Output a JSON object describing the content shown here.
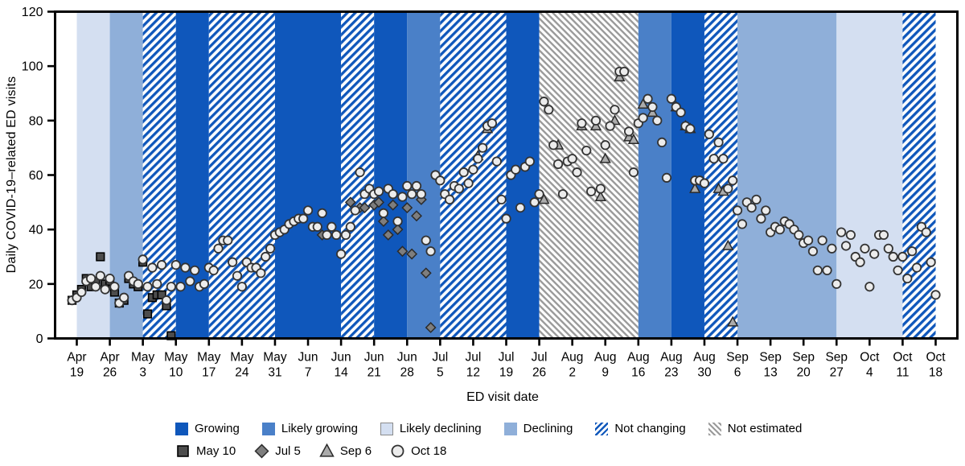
{
  "chart_data": {
    "type": "scatter",
    "xlabel": "ED visit date",
    "ylabel": "Daily COVID-19–related ED visits",
    "ylim": [
      0,
      120
    ],
    "yticks": [
      0,
      20,
      40,
      60,
      80,
      100,
      120
    ],
    "day_zero_label": "Apr 19",
    "x_domain_days": [
      -4.6,
      186.6
    ],
    "x_tick_days": [
      0,
      7,
      14,
      21,
      28,
      35,
      42,
      49,
      56,
      63,
      70,
      77,
      84,
      91,
      98,
      105,
      112,
      119,
      126,
      133,
      140,
      147,
      154,
      161,
      168,
      175,
      182
    ],
    "x_tick_labels": [
      {
        "month": "Apr",
        "day": "19"
      },
      {
        "month": "Apr",
        "day": "26"
      },
      {
        "month": "May",
        "day": "3"
      },
      {
        "month": "May",
        "day": "10"
      },
      {
        "month": "May",
        "day": "17"
      },
      {
        "month": "May",
        "day": "24"
      },
      {
        "month": "May",
        "day": "31"
      },
      {
        "month": "Jun",
        "day": "7"
      },
      {
        "month": "Jun",
        "day": "14"
      },
      {
        "month": "Jun",
        "day": "21"
      },
      {
        "month": "Jun",
        "day": "28"
      },
      {
        "month": "Jul",
        "day": "5"
      },
      {
        "month": "Jul",
        "day": "12"
      },
      {
        "month": "Jul",
        "day": "19"
      },
      {
        "month": "Jul",
        "day": "26"
      },
      {
        "month": "Aug",
        "day": "2"
      },
      {
        "month": "Aug",
        "day": "9"
      },
      {
        "month": "Aug",
        "day": "16"
      },
      {
        "month": "Aug",
        "day": "23"
      },
      {
        "month": "Aug",
        "day": "30"
      },
      {
        "month": "Sep",
        "day": "6"
      },
      {
        "month": "Sep",
        "day": "13"
      },
      {
        "month": "Sep",
        "day": "20"
      },
      {
        "month": "Sep",
        "day": "27"
      },
      {
        "month": "Oct",
        "day": "4"
      },
      {
        "month": "Oct",
        "day": "11"
      },
      {
        "month": "Oct",
        "day": "18"
      }
    ],
    "categories": {
      "growing": {
        "label": "Growing",
        "color": "#0F57BB",
        "pattern": "solid"
      },
      "likely_growing": {
        "label": "Likely growing",
        "color": "#4A80C8",
        "pattern": "solid"
      },
      "likely_declining": {
        "label": "Likely declining",
        "color": "#D4DFF1",
        "pattern": "solid"
      },
      "declining": {
        "label": "Declining",
        "color": "#8FAFD9",
        "pattern": "solid"
      },
      "not_changing": {
        "label": "Not changing",
        "color": "#0F57BB",
        "pattern": "hatch-fwd"
      },
      "not_estimated": {
        "label": "Not estimated",
        "color": "#9A9A9A",
        "pattern": "hatch-back"
      }
    },
    "legend_order": [
      "growing",
      "likely_growing",
      "likely_declining",
      "declining",
      "not_changing",
      "not_estimated"
    ],
    "trend_bands": [
      {
        "from_day": 0,
        "to_day": 7,
        "category": "likely_declining"
      },
      {
        "from_day": 7,
        "to_day": 14,
        "category": "declining"
      },
      {
        "from_day": 14,
        "to_day": 21,
        "category": "not_changing"
      },
      {
        "from_day": 21,
        "to_day": 28,
        "category": "growing"
      },
      {
        "from_day": 28,
        "to_day": 42,
        "category": "not_changing"
      },
      {
        "from_day": 42,
        "to_day": 56,
        "category": "growing"
      },
      {
        "from_day": 56,
        "to_day": 63,
        "category": "not_changing"
      },
      {
        "from_day": 63,
        "to_day": 70,
        "category": "growing"
      },
      {
        "from_day": 70,
        "to_day": 77,
        "category": "likely_growing"
      },
      {
        "from_day": 77,
        "to_day": 91,
        "category": "not_changing"
      },
      {
        "from_day": 91,
        "to_day": 98,
        "category": "growing"
      },
      {
        "from_day": 98,
        "to_day": 119,
        "category": "not_estimated"
      },
      {
        "from_day": 119,
        "to_day": 126,
        "category": "likely_growing"
      },
      {
        "from_day": 126,
        "to_day": 133,
        "category": "growing"
      },
      {
        "from_day": 133,
        "to_day": 140,
        "category": "not_changing"
      },
      {
        "from_day": 140,
        "to_day": 161,
        "category": "declining"
      },
      {
        "from_day": 161,
        "to_day": 175,
        "category": "likely_declining"
      },
      {
        "from_day": 175,
        "to_day": 182,
        "category": "not_changing"
      }
    ],
    "series": [
      {
        "name": "May 10",
        "marker": "square",
        "fill": "#4D4D4D",
        "stroke": "#000000",
        "points": [
          [
            -1,
            14
          ],
          [
            0,
            16
          ],
          [
            1,
            18
          ],
          [
            2,
            22
          ],
          [
            3,
            19
          ],
          [
            4,
            21
          ],
          [
            5,
            30
          ],
          [
            6,
            20
          ],
          [
            7,
            21
          ],
          [
            8,
            17
          ],
          [
            9,
            13
          ],
          [
            10,
            14
          ],
          [
            11,
            22
          ],
          [
            12,
            20
          ],
          [
            13,
            19
          ],
          [
            14,
            28
          ],
          [
            15,
            9
          ],
          [
            16,
            15
          ],
          [
            17,
            16
          ],
          [
            18,
            16
          ],
          [
            19,
            12
          ],
          [
            20,
            1
          ]
        ]
      },
      {
        "name": "Jul 5",
        "marker": "diamond",
        "fill": "#7E7E7E",
        "stroke": "#2B2B2B",
        "points": [
          [
            52,
            38
          ],
          [
            58,
            50
          ],
          [
            60,
            48
          ],
          [
            61,
            48
          ],
          [
            63,
            49
          ],
          [
            64,
            50
          ],
          [
            65,
            43
          ],
          [
            66,
            38
          ],
          [
            67,
            49
          ],
          [
            68,
            40
          ],
          [
            69,
            32
          ],
          [
            70,
            48
          ],
          [
            71,
            31
          ],
          [
            72,
            45
          ],
          [
            73,
            51
          ],
          [
            74,
            24
          ],
          [
            75,
            4
          ]
        ]
      },
      {
        "name": "Sep 6",
        "marker": "triangle",
        "fill": "#ABABAB",
        "stroke": "#2B2B2B",
        "points": [
          [
            85,
            67
          ],
          [
            87,
            77
          ],
          [
            99,
            51
          ],
          [
            102,
            71
          ],
          [
            107,
            78
          ],
          [
            110,
            78
          ],
          [
            111,
            52
          ],
          [
            112,
            66
          ],
          [
            114,
            80
          ],
          [
            115,
            96
          ],
          [
            117,
            74
          ],
          [
            118,
            73
          ],
          [
            120,
            86
          ],
          [
            122,
            83
          ],
          [
            127,
            85
          ],
          [
            129,
            78
          ],
          [
            130,
            77
          ],
          [
            131,
            55
          ],
          [
            136,
            55
          ],
          [
            137,
            54
          ],
          [
            138,
            34
          ],
          [
            139,
            6
          ]
        ]
      },
      {
        "name": "Oct 18",
        "marker": "circle",
        "fill": "#ECECEC",
        "stroke": "#333333",
        "points": [
          [
            -1,
            14
          ],
          [
            0,
            15
          ],
          [
            1,
            17
          ],
          [
            2,
            21
          ],
          [
            3,
            22
          ],
          [
            4,
            19
          ],
          [
            5,
            23
          ],
          [
            6,
            18
          ],
          [
            7,
            22
          ],
          [
            8,
            19
          ],
          [
            9,
            13
          ],
          [
            10,
            15
          ],
          [
            11,
            23
          ],
          [
            12,
            21
          ],
          [
            13,
            20
          ],
          [
            14,
            29
          ],
          [
            15,
            19
          ],
          [
            16,
            26
          ],
          [
            17,
            20
          ],
          [
            18,
            27
          ],
          [
            19,
            14
          ],
          [
            20,
            19
          ],
          [
            21,
            27
          ],
          [
            22,
            19
          ],
          [
            23,
            26
          ],
          [
            24,
            21
          ],
          [
            25,
            25
          ],
          [
            26,
            19
          ],
          [
            27,
            20
          ],
          [
            28,
            26
          ],
          [
            29,
            25
          ],
          [
            30,
            33
          ],
          [
            31,
            36
          ],
          [
            32,
            36
          ],
          [
            33,
            28
          ],
          [
            34,
            23
          ],
          [
            35,
            19
          ],
          [
            36,
            28
          ],
          [
            37,
            26
          ],
          [
            38,
            26
          ],
          [
            39,
            24
          ],
          [
            40,
            30
          ],
          [
            41,
            33
          ],
          [
            42,
            38
          ],
          [
            43,
            39
          ],
          [
            44,
            40
          ],
          [
            45,
            42
          ],
          [
            46,
            43
          ],
          [
            47,
            44
          ],
          [
            48,
            44
          ],
          [
            49,
            47
          ],
          [
            50,
            41
          ],
          [
            51,
            41
          ],
          [
            52,
            46
          ],
          [
            53,
            38
          ],
          [
            54,
            41
          ],
          [
            55,
            38
          ],
          [
            56,
            31
          ],
          [
            57,
            38
          ],
          [
            58,
            41
          ],
          [
            59,
            47
          ],
          [
            60,
            61
          ],
          [
            61,
            53
          ],
          [
            62,
            55
          ],
          [
            63,
            53
          ],
          [
            64,
            54
          ],
          [
            65,
            46
          ],
          [
            66,
            55
          ],
          [
            67,
            53
          ],
          [
            68,
            43
          ],
          [
            69,
            52
          ],
          [
            70,
            56
          ],
          [
            71,
            53
          ],
          [
            72,
            56
          ],
          [
            73,
            53
          ],
          [
            74,
            36
          ],
          [
            75,
            32
          ],
          [
            76,
            60
          ],
          [
            77,
            58
          ],
          [
            78,
            53
          ],
          [
            79,
            51
          ],
          [
            80,
            56
          ],
          [
            81,
            55
          ],
          [
            82,
            61
          ],
          [
            83,
            57
          ],
          [
            84,
            62
          ],
          [
            85,
            66
          ],
          [
            86,
            70
          ],
          [
            87,
            78
          ],
          [
            88,
            79
          ],
          [
            89,
            65
          ],
          [
            90,
            51
          ],
          [
            91,
            44
          ],
          [
            92,
            60
          ],
          [
            93,
            62
          ],
          [
            94,
            48
          ],
          [
            95,
            63
          ],
          [
            96,
            65
          ],
          [
            97,
            50
          ],
          [
            98,
            53
          ],
          [
            99,
            87
          ],
          [
            100,
            84
          ],
          [
            101,
            71
          ],
          [
            102,
            64
          ],
          [
            103,
            53
          ],
          [
            104,
            65
          ],
          [
            105,
            66
          ],
          [
            106,
            61
          ],
          [
            107,
            79
          ],
          [
            108,
            69
          ],
          [
            109,
            54
          ],
          [
            110,
            80
          ],
          [
            111,
            55
          ],
          [
            112,
            71
          ],
          [
            113,
            78
          ],
          [
            114,
            84
          ],
          [
            115,
            98
          ],
          [
            116,
            98
          ],
          [
            117,
            76
          ],
          [
            118,
            61
          ],
          [
            119,
            79
          ],
          [
            120,
            81
          ],
          [
            121,
            88
          ],
          [
            122,
            85
          ],
          [
            123,
            80
          ],
          [
            124,
            72
          ],
          [
            125,
            59
          ],
          [
            126,
            88
          ],
          [
            127,
            85
          ],
          [
            128,
            83
          ],
          [
            129,
            78
          ],
          [
            130,
            77
          ],
          [
            131,
            58
          ],
          [
            132,
            58
          ],
          [
            133,
            57
          ],
          [
            134,
            75
          ],
          [
            135,
            66
          ],
          [
            136,
            72
          ],
          [
            137,
            66
          ],
          [
            138,
            55
          ],
          [
            139,
            58
          ],
          [
            140,
            47
          ],
          [
            141,
            42
          ],
          [
            142,
            50
          ],
          [
            143,
            48
          ],
          [
            144,
            51
          ],
          [
            145,
            44
          ],
          [
            146,
            47
          ],
          [
            147,
            39
          ],
          [
            148,
            41
          ],
          [
            149,
            40
          ],
          [
            150,
            43
          ],
          [
            151,
            42
          ],
          [
            152,
            40
          ],
          [
            153,
            38
          ],
          [
            154,
            35
          ],
          [
            155,
            36
          ],
          [
            156,
            32
          ],
          [
            157,
            25
          ],
          [
            158,
            36
          ],
          [
            159,
            25
          ],
          [
            160,
            33
          ],
          [
            161,
            20
          ],
          [
            162,
            39
          ],
          [
            163,
            34
          ],
          [
            164,
            38
          ],
          [
            165,
            30
          ],
          [
            166,
            28
          ],
          [
            167,
            33
          ],
          [
            168,
            19
          ],
          [
            169,
            31
          ],
          [
            170,
            38
          ],
          [
            171,
            38
          ],
          [
            172,
            33
          ],
          [
            173,
            30
          ],
          [
            174,
            25
          ],
          [
            175,
            30
          ],
          [
            176,
            22
          ],
          [
            177,
            32
          ],
          [
            178,
            26
          ],
          [
            179,
            41
          ],
          [
            180,
            39
          ],
          [
            181,
            28
          ],
          [
            182,
            16
          ]
        ]
      }
    ]
  }
}
